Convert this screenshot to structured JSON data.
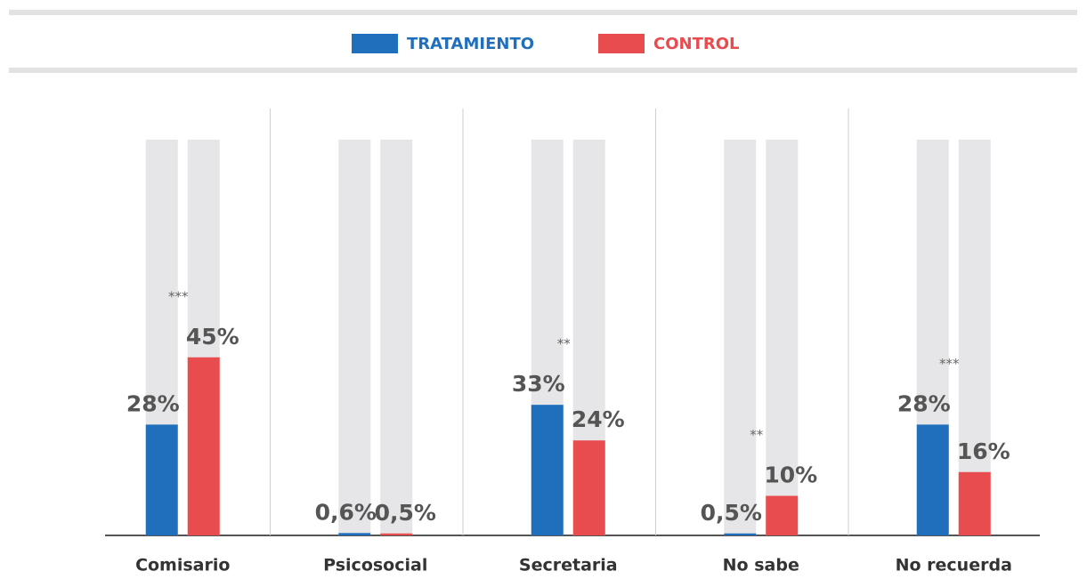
{
  "chart_data": {
    "type": "bar",
    "categories": [
      "Comisario",
      "Psicosocial",
      "Secretaria",
      "No sabe",
      "No recuerda"
    ],
    "series": [
      {
        "name": "TRATAMIENTO",
        "color": "#1f6fbd",
        "values": [
          28,
          0.6,
          33,
          0.5,
          28
        ],
        "value_labels": [
          "28%",
          "0,6%",
          "33%",
          "0,5%",
          "28%"
        ]
      },
      {
        "name": "CONTROL",
        "color": "#e84c4f",
        "values": [
          45,
          0.5,
          24,
          10,
          16
        ],
        "value_labels": [
          "45%",
          "0,5%",
          "24%",
          "10%",
          "16%"
        ]
      }
    ],
    "annotations": [
      "***",
      null,
      "**",
      "**",
      "***"
    ],
    "ylim": [
      0,
      100
    ]
  }
}
